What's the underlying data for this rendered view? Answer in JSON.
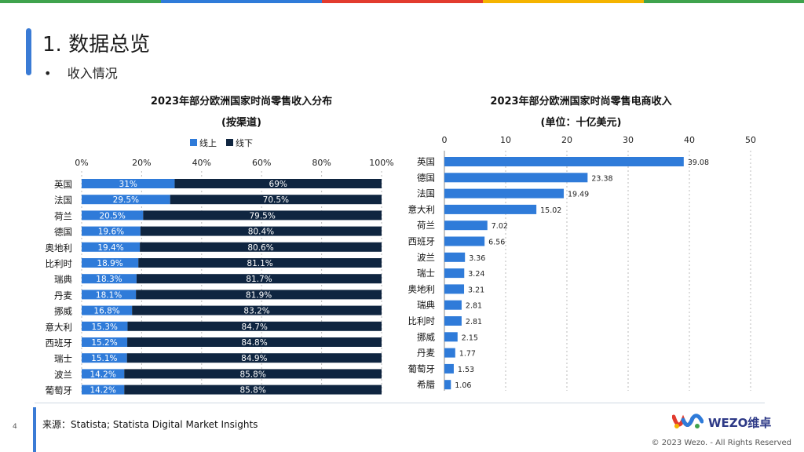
{
  "page": {
    "title": "1. 数据总览",
    "subtitle": "收入情况",
    "source": "来源：Statista; Statista Digital Market Insights",
    "page_number": "4",
    "brand": "WEZO维卓",
    "copyright": "© 2023 Wezo. - All Rights Reserved",
    "colors": {
      "blue": "#2f7bd9",
      "navy": "#0f2540",
      "accent": "#3a7bd5",
      "top_bar": [
        "#3fa34d",
        "#2f7bd9",
        "#e23b2e",
        "#f5b400"
      ]
    }
  },
  "chart_data": [
    {
      "type": "bar",
      "orientation": "horizontal",
      "stacked": "percent",
      "title": "2023年部分欧洲国家时尚零售收入分布",
      "subtitle": "(按渠道)",
      "categories": [
        "英国",
        "法国",
        "荷兰",
        "德国",
        "奥地利",
        "比利时",
        "瑞典",
        "丹麦",
        "挪威",
        "意大利",
        "西班牙",
        "瑞士",
        "波兰",
        "葡萄牙"
      ],
      "series": [
        {
          "name": "线上",
          "values": [
            31,
            29.5,
            20.5,
            19.6,
            19.4,
            18.9,
            18.3,
            18.1,
            16.8,
            15.3,
            15.2,
            15.1,
            14.2,
            14.2
          ],
          "labels": [
            "31%",
            "29.5%",
            "20.5%",
            "19.6%",
            "19.4%",
            "18.9%",
            "18.3%",
            "18.1%",
            "16.8%",
            "15.3%",
            "15.2%",
            "15.1%",
            "14.2%",
            "14.2%"
          ]
        },
        {
          "name": "线下",
          "values": [
            69,
            70.5,
            79.5,
            80.4,
            80.6,
            81.1,
            81.7,
            81.9,
            83.2,
            84.7,
            84.8,
            84.9,
            85.8,
            85.8
          ],
          "labels": [
            "69%",
            "70.5%",
            "79.5%",
            "80.4%",
            "80.6%",
            "81.1%",
            "81.7%",
            "81.9%",
            "83.2%",
            "84.7%",
            "84.8%",
            "84.9%",
            "85.8%",
            "85.8%"
          ]
        }
      ],
      "xlim": [
        0,
        100
      ],
      "xticks": [
        "0%",
        "20%",
        "40%",
        "60%",
        "80%",
        "100%"
      ],
      "legend": "top",
      "grid": true
    },
    {
      "type": "bar",
      "orientation": "horizontal",
      "title": "2023年部分欧洲国家时尚零售电商收入",
      "subtitle": "(单位：十亿美元)",
      "categories": [
        "英国",
        "德国",
        "法国",
        "意大利",
        "荷兰",
        "西班牙",
        "波兰",
        "瑞士",
        "奥地利",
        "瑞典",
        "比利时",
        "挪威",
        "丹麦",
        "葡萄牙",
        "希腊"
      ],
      "values": [
        39.08,
        23.38,
        19.49,
        15.02,
        7.02,
        6.56,
        3.36,
        3.24,
        3.21,
        2.81,
        2.81,
        2.15,
        1.77,
        1.53,
        1.06
      ],
      "labels": [
        "39.08",
        "23.38",
        "19.49",
        "15.02",
        "7.02",
        "6.56",
        "3.36",
        "3.24",
        "3.21",
        "2.81",
        "2.81",
        "2.15",
        "1.77",
        "1.53",
        "1.06"
      ],
      "xlim": [
        0,
        50
      ],
      "xticks": [
        "0",
        "10",
        "20",
        "30",
        "40",
        "50"
      ],
      "grid": true
    }
  ]
}
